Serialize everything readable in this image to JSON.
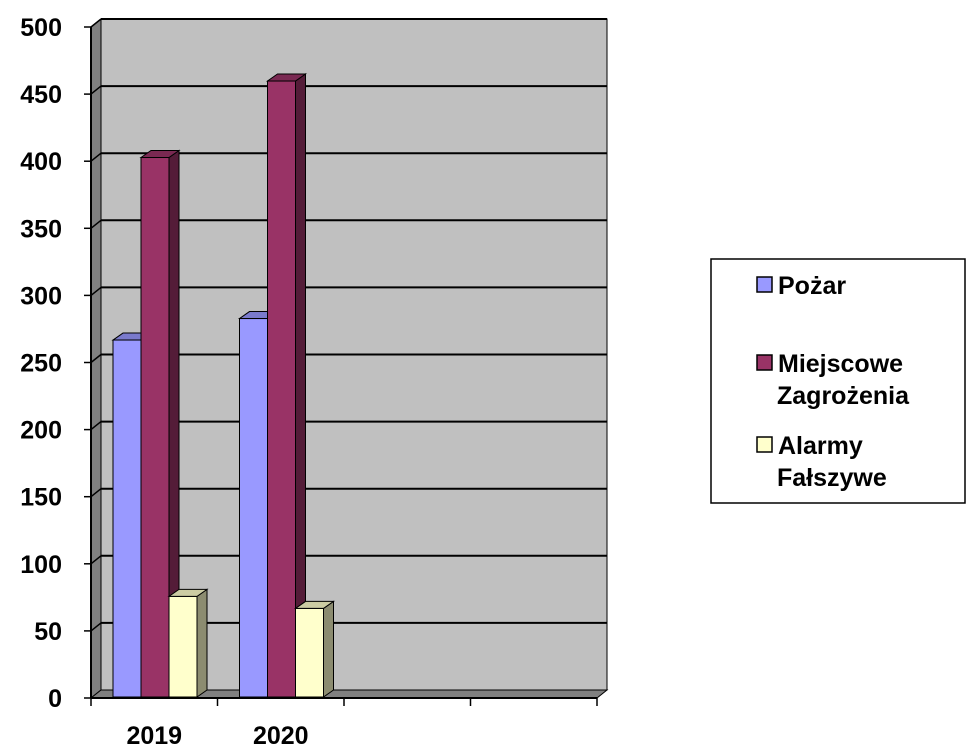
{
  "chart_data": {
    "type": "bar",
    "title": "",
    "xlabel": "",
    "ylabel": "",
    "ylim": [
      0,
      500
    ],
    "ytick_step": 50,
    "grid": true,
    "legend_position": "right",
    "categories": [
      "2019",
      "2020",
      "",
      "",
      ""
    ],
    "series": [
      {
        "name": "Pożar",
        "name_lines": [
          "Pożar"
        ],
        "values": [
          266,
          282,
          null,
          null,
          null
        ],
        "color": "#9999ff"
      },
      {
        "name": "Miejscowe Zagrożenia",
        "name_lines": [
          "Miejscowe",
          "Zagrożenia"
        ],
        "values": [
          402,
          459,
          null,
          null,
          null
        ],
        "color": "#993366"
      },
      {
        "name": "Alarmy Fałszywe",
        "name_lines": [
          "Alarmy",
          "Fałszywe"
        ],
        "values": [
          75,
          66,
          null,
          null,
          null
        ],
        "color": "#ffffcc"
      }
    ],
    "colors": {
      "plot_background": "#c0c0c0",
      "wall_side": "#808080",
      "floor": "#808080",
      "grid": "#000000"
    }
  }
}
